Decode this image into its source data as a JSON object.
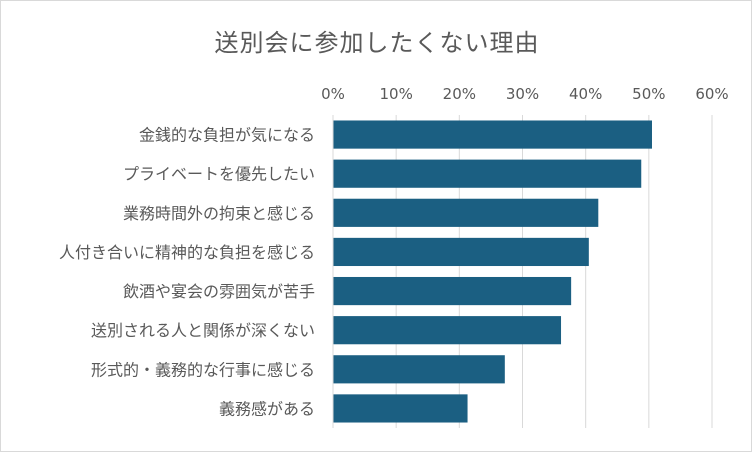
{
  "chart_data": {
    "type": "bar",
    "orientation": "horizontal",
    "title": "送別会に参加したくない理由",
    "categories": [
      "金銭的な負担が気になる",
      "プライベートを優先したい",
      "業務時間外の拘束と感じる",
      "人付き合いに精神的な負担を感じる",
      "飲酒や宴会の雰囲気が苦手",
      "送別される人と関係が深くない",
      "形式的・義務的な行事に感じる",
      "義務感がある"
    ],
    "values": [
      50.5,
      48.8,
      42.0,
      40.5,
      37.7,
      36.1,
      27.2,
      21.3
    ],
    "xlim": [
      0,
      60
    ],
    "ticks": [
      "0%",
      "10%",
      "20%",
      "30%",
      "40%",
      "50%",
      "60%"
    ],
    "axis_position": "top",
    "grid": true,
    "legend": "none",
    "bar_color": "#1b5f82",
    "grid_color": "#d9d9d9",
    "text_color": "#595959"
  }
}
